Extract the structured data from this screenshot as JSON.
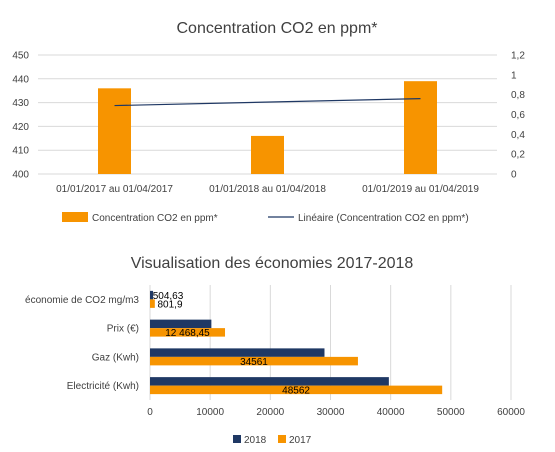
{
  "chart_data": [
    {
      "type": "bar",
      "title": "Concentration CO2 en ppm*",
      "categories": [
        "01/01/2017 au 01/04/2017",
        "01/01/2018 au 01/04/2018",
        "01/01/2019 au 01/04/2019"
      ],
      "series": [
        {
          "name": "Concentration CO2 en ppm*",
          "values": [
            436,
            416,
            439
          ],
          "color": "#F79400",
          "axis": "left"
        }
      ],
      "trendline": {
        "name": "Linéaire (Concentration CO2 en ppm*)",
        "start": 0.69,
        "end": 0.76,
        "axis": "right",
        "color": "#1F3864"
      },
      "y_left": {
        "ylim": [
          400,
          450
        ],
        "ticks": [
          "400",
          "410",
          "420",
          "430",
          "440",
          "450"
        ],
        "tick_values": [
          400,
          410,
          420,
          430,
          440,
          450
        ]
      },
      "y_right": {
        "ylim": [
          0,
          1.2
        ],
        "ticks": [
          "0",
          "0,2",
          "0,4",
          "0,6",
          "0,8",
          "1",
          "1,2"
        ],
        "tick_values": [
          0,
          0.2,
          0.4,
          0.6,
          0.8,
          1,
          1.2
        ]
      },
      "grid": true,
      "legend_position": "bottom",
      "legend": [
        "Concentration CO2 en ppm*",
        "Linéaire (Concentration CO2 en ppm*)"
      ]
    },
    {
      "type": "bar",
      "orientation": "horizontal",
      "title": "Visualisation des économies 2017-2018",
      "categories": [
        "économie de CO2 mg/m3",
        "Prix (€)",
        "Gaz (Kwh)",
        "Electricité (Kwh)"
      ],
      "series": [
        {
          "name": "2018",
          "values": [
            504.63,
            10200,
            29000,
            39700
          ],
          "color": "#1F3864",
          "labels": [
            "504,63",
            "",
            "",
            ""
          ]
        },
        {
          "name": "2017",
          "values": [
            801.9,
            12468.45,
            34561,
            48562
          ],
          "color": "#F79400",
          "labels": [
            "801,9",
            "12 468,45",
            "34561",
            "48562"
          ]
        }
      ],
      "xlim": [
        0,
        60000
      ],
      "x_ticks": [
        "0",
        "10000",
        "20000",
        "30000",
        "40000",
        "50000",
        "60000"
      ],
      "x_tick_values": [
        0,
        10000,
        20000,
        30000,
        40000,
        50000,
        60000
      ],
      "grid": true,
      "legend_position": "bottom",
      "legend": [
        "2018",
        "2017"
      ]
    }
  ]
}
